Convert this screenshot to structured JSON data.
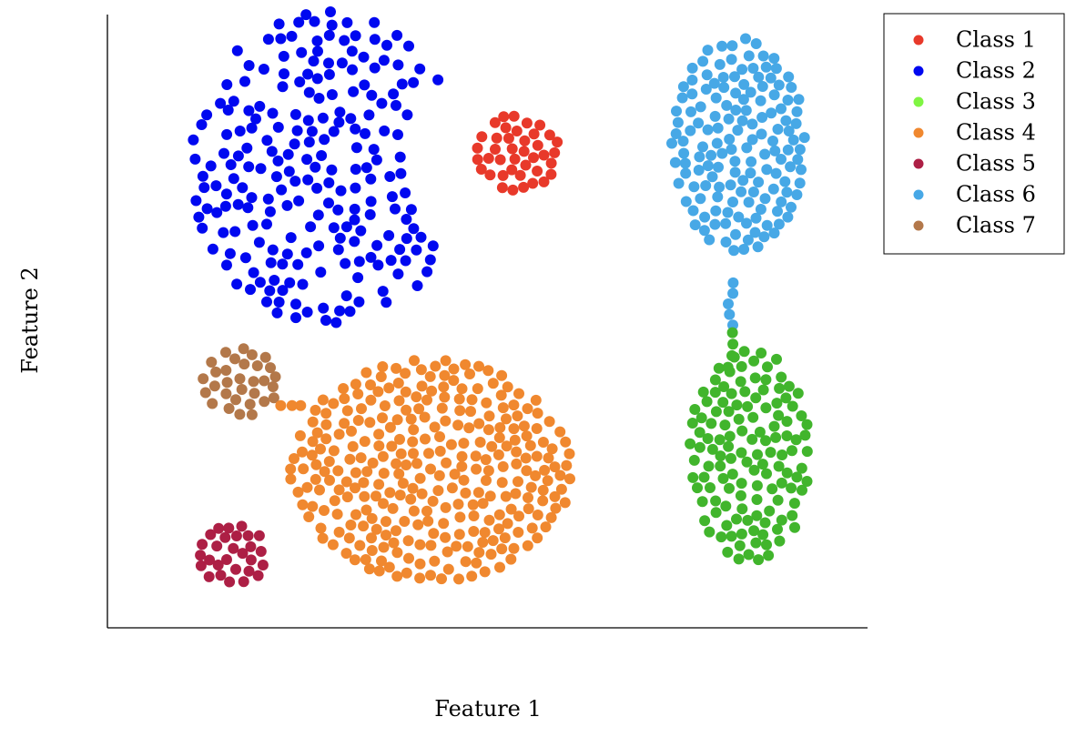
{
  "chart_data": {
    "type": "scatter",
    "title": "",
    "xlabel": "Feature 1",
    "ylabel": "Feature 2",
    "xlim": [
      0,
      10
    ],
    "ylim": [
      0,
      8
    ],
    "grid": false,
    "ticks_visible": false,
    "legend_position": "top-right (outside plot)",
    "series": [
      {
        "name": "Class 1",
        "color": "#e8392a",
        "shape": "ellipse",
        "count": 60,
        "center": [
          5.4,
          6.2
        ],
        "spread": [
          0.55,
          0.5
        ]
      },
      {
        "name": "Class 2",
        "color": "#0008f0",
        "shape": "crescent",
        "count": 220,
        "center": [
          2.9,
          6.0
        ],
        "spread": [
          3.0,
          3.4
        ]
      },
      {
        "name": "Class 3",
        "color": "#41b52c",
        "shape": "ellipse",
        "count": 130,
        "center": [
          8.45,
          2.25
        ],
        "spread": [
          0.8,
          1.4
        ]
      },
      {
        "name": "Class 4",
        "color": "#f0882f",
        "shape": "ellipse",
        "count": 380,
        "center": [
          4.25,
          2.05
        ],
        "spread": [
          1.85,
          1.45
        ]
      },
      {
        "name": "Class 5",
        "color": "#ad1f45",
        "shape": "ellipse",
        "count": 38,
        "center": [
          1.65,
          0.95
        ],
        "spread": [
          0.45,
          0.4
        ]
      },
      {
        "name": "Class 6",
        "color": "#47a8e6",
        "shape": "ellipse",
        "count": 200,
        "center": [
          8.3,
          6.3
        ],
        "spread": [
          0.88,
          1.4
        ]
      },
      {
        "name": "Class 7",
        "color": "#b3784a",
        "shape": "ellipse",
        "count": 50,
        "center": [
          1.75,
          3.2
        ],
        "spread": [
          0.5,
          0.45
        ]
      }
    ],
    "connectors": [
      {
        "series": "Class 6",
        "from": [
          8.2,
          4.5
        ],
        "to": [
          8.2,
          3.95
        ]
      },
      {
        "series": "Class 3",
        "from": [
          8.2,
          3.85
        ],
        "to": [
          8.2,
          3.4
        ]
      },
      {
        "series": "Class 4",
        "from": [
          2.55,
          2.9
        ],
        "to": [
          2.3,
          2.9
        ]
      }
    ]
  },
  "legend": {
    "items": [
      {
        "label": "Class 1",
        "color": "#e8392a"
      },
      {
        "label": "Class 2",
        "color": "#0008f0"
      },
      {
        "label": "Class 3",
        "color": "#7ff542"
      },
      {
        "label": "Class 4",
        "color": "#f0882f"
      },
      {
        "label": "Class 5",
        "color": "#ad1f45"
      },
      {
        "label": "Class 6",
        "color": "#47a8e6"
      },
      {
        "label": "Class 7",
        "color": "#b3784a"
      }
    ]
  }
}
